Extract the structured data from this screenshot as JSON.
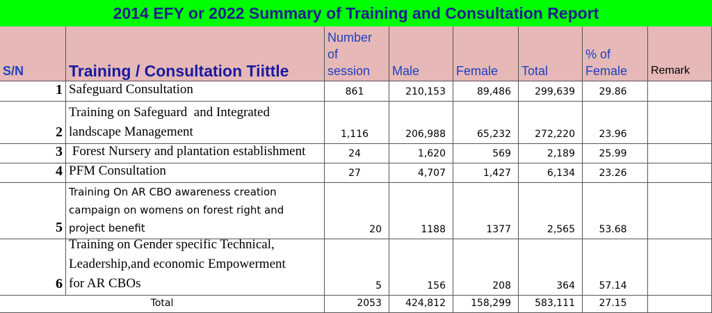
{
  "title": "2014 EFY or 2022 Summary  of Training and Consultation Report",
  "header": {
    "sn": "S/N",
    "training": "Training / Consultation Tiittle",
    "sessions": [
      "Number",
      "of",
      "session"
    ],
    "male": "Male",
    "female": "Female",
    "total": "Total",
    "pct": [
      "% of",
      "Female"
    ],
    "remark": "Remark"
  },
  "rows": [
    {
      "sn": "1",
      "title": [
        "Safeguard Consultation"
      ],
      "cells": [
        "861",
        "210,153",
        "89,486",
        "299,639",
        "29.86"
      ]
    },
    {
      "sn": "2",
      "title": [
        "Training on Safeguard  and Integrated",
        "landscape Management"
      ],
      "cells": [
        "1,116",
        "206,988",
        "65,232",
        "272,220",
        "23.96"
      ]
    },
    {
      "sn": "3",
      "title": [
        " Forest Nursery and plantation establishment"
      ],
      "cells": [
        "24",
        "1,620",
        "569",
        "2,189",
        "25.99"
      ]
    },
    {
      "sn": "4",
      "title": [
        "PFM Consultation"
      ],
      "cells": [
        "27",
        "4,707",
        "1,427",
        "6,134",
        "23.26"
      ]
    },
    {
      "sn": "5",
      "title": [
        "Training On AR CBO awareness creation",
        "campaign on womens on forest right and",
        "project benefit"
      ],
      "cells": [
        "20",
        "1188",
        "1377",
        "2,565",
        "53.68"
      ]
    },
    {
      "sn": "6",
      "title": [
        "Training on Gender specific Technical,",
        "Leadership,and economic Empowerment",
        "for AR CBOs"
      ],
      "cells": [
        "5",
        "156",
        "208",
        "364",
        "57.14"
      ]
    }
  ],
  "total": {
    "label": "Total",
    "cells": [
      "2053",
      "424,812",
      "158,299",
      "583,111",
      "27.15"
    ]
  }
}
